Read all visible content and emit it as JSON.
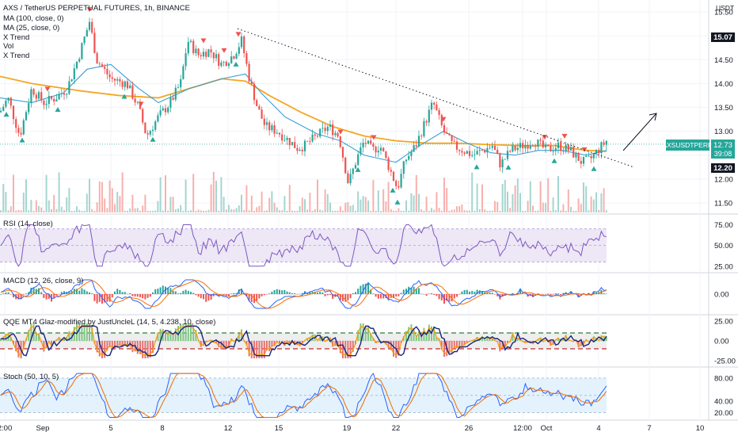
{
  "header": {
    "title": "AXS / TetherUS PERPETUAL FUTURES, 1h, BINANCE",
    "indicators": [
      "MA (100, close, 0)",
      "MA (25, close, 0)",
      "X Trend",
      "Vol",
      "X Trend"
    ]
  },
  "price_axis": {
    "currency": "USDT"
  },
  "badges": {
    "high": "15.07",
    "symbol": "AXSUSDTPERP",
    "last": "12.73",
    "countdown": "39:08",
    "low": "12.20"
  },
  "panes": {
    "rsi": {
      "title": "RSI (14, close)"
    },
    "macd": {
      "title": "MACD (12, 26, close, 9)"
    },
    "qqe": {
      "title": "QQE MT4 Glaz-modified by JustUncleL (14, 5, 4.238, 10, close)"
    },
    "stoch": {
      "title": "Stoch (50, 10, 5)"
    }
  },
  "colors": {
    "up": "#26a69a",
    "down": "#ef5350",
    "ma100": "#f5a623",
    "ma25": "#3aa0d8",
    "rsi": "#7e57c2",
    "rsi_band": "#ede7f6",
    "macd": "#2962ff",
    "signal": "#ff6d00",
    "qqe_line": "#1a237e",
    "stoch_k": "#2962ff",
    "stoch_d": "#ef6c00",
    "stoch_band": "#e3f2fd",
    "badge_dark": "#131722",
    "badge_symbol": "#26a69a"
  },
  "chart_data": [
    {
      "type": "candlestick",
      "title": "AXS / TetherUS PERPETUAL FUTURES, 1h, BINANCE",
      "price_unit": "USDT",
      "x_tick_labels": [
        "2:00",
        "Sep",
        "5",
        "8",
        "12",
        "15",
        "19",
        "22",
        "26",
        "12:00",
        "Oct",
        "4",
        "7",
        "10"
      ],
      "y_tick_labels": [
        "11.50",
        "12.00",
        "12.50",
        "13.00",
        "13.50",
        "14.00",
        "14.50",
        "15.00",
        "15.50"
      ],
      "ylim": [
        11.3,
        15.7
      ],
      "high_marker": 15.07,
      "low_marker": 12.2,
      "last_price": 12.73,
      "price_path": [
        [
          0,
          13.4
        ],
        [
          10,
          13.7
        ],
        [
          25,
          12.9
        ],
        [
          40,
          13.9
        ],
        [
          55,
          13.6
        ],
        [
          70,
          13.7
        ],
        [
          85,
          13.9
        ],
        [
          100,
          14.6
        ],
        [
          113,
          15.3
        ],
        [
          122,
          14.5
        ],
        [
          140,
          14.1
        ],
        [
          160,
          14.0
        ],
        [
          175,
          13.5
        ],
        [
          185,
          12.9
        ],
        [
          200,
          13.3
        ],
        [
          215,
          13.6
        ],
        [
          228,
          14.0
        ],
        [
          237,
          14.9
        ],
        [
          250,
          14.6
        ],
        [
          265,
          14.7
        ],
        [
          280,
          14.4
        ],
        [
          295,
          14.6
        ],
        [
          305,
          14.9
        ],
        [
          315,
          14.1
        ],
        [
          325,
          13.5
        ],
        [
          335,
          13.1
        ],
        [
          350,
          13.0
        ],
        [
          365,
          12.8
        ],
        [
          375,
          12.65
        ],
        [
          385,
          12.7
        ],
        [
          400,
          12.9
        ],
        [
          415,
          13.1
        ],
        [
          428,
          12.9
        ],
        [
          440,
          11.9
        ],
        [
          450,
          12.4
        ],
        [
          460,
          12.8
        ],
        [
          470,
          12.6
        ],
        [
          480,
          12.7
        ],
        [
          490,
          12.3
        ],
        [
          502,
          11.8
        ],
        [
          512,
          12.4
        ],
        [
          525,
          12.7
        ],
        [
          537,
          13.2
        ],
        [
          547,
          13.6
        ],
        [
          560,
          13.0
        ],
        [
          572,
          12.7
        ],
        [
          585,
          12.6
        ],
        [
          597,
          12.5
        ],
        [
          610,
          12.6
        ],
        [
          622,
          12.7
        ],
        [
          632,
          12.3
        ],
        [
          645,
          12.6
        ],
        [
          660,
          12.7
        ],
        [
          675,
          12.8
        ],
        [
          690,
          12.6
        ],
        [
          705,
          12.7
        ],
        [
          720,
          12.6
        ],
        [
          735,
          12.35
        ],
        [
          745,
          12.4
        ],
        [
          755,
          12.6
        ],
        [
          766,
          12.8
        ]
      ],
      "ma100": [
        [
          0,
          14.15
        ],
        [
          40,
          14.0
        ],
        [
          100,
          13.85
        ],
        [
          150,
          13.75
        ],
        [
          200,
          13.7
        ],
        [
          240,
          13.9
        ],
        [
          280,
          14.1
        ],
        [
          310,
          14.05
        ],
        [
          340,
          13.75
        ],
        [
          380,
          13.4
        ],
        [
          420,
          13.1
        ],
        [
          460,
          12.9
        ],
        [
          500,
          12.8
        ],
        [
          540,
          12.75
        ],
        [
          580,
          12.75
        ],
        [
          620,
          12.72
        ],
        [
          660,
          12.7
        ],
        [
          700,
          12.7
        ],
        [
          740,
          12.6
        ],
        [
          766,
          12.58
        ]
      ],
      "ma25": [
        [
          0,
          13.7
        ],
        [
          40,
          13.6
        ],
        [
          80,
          13.8
        ],
        [
          110,
          14.3
        ],
        [
          140,
          14.4
        ],
        [
          175,
          13.9
        ],
        [
          200,
          13.6
        ],
        [
          240,
          13.9
        ],
        [
          280,
          14.1
        ],
        [
          310,
          14.2
        ],
        [
          330,
          13.8
        ],
        [
          360,
          13.3
        ],
        [
          400,
          12.95
        ],
        [
          430,
          12.8
        ],
        [
          460,
          12.5
        ],
        [
          500,
          12.35
        ],
        [
          530,
          12.7
        ],
        [
          560,
          13.0
        ],
        [
          590,
          12.75
        ],
        [
          620,
          12.55
        ],
        [
          650,
          12.5
        ],
        [
          680,
          12.6
        ],
        [
          710,
          12.6
        ],
        [
          740,
          12.5
        ],
        [
          766,
          12.6
        ]
      ],
      "trendline": {
        "from": [
          300,
          15.15
        ],
        "to": [
          800,
          12.25
        ]
      },
      "sell_markers_x": [
        60,
        113,
        178,
        257,
        283,
        301,
        430,
        472,
        560,
        688,
        713,
        738
      ],
      "buy_markers_x": [
        8,
        28,
        73,
        157,
        193,
        298,
        452,
        496,
        502,
        602,
        642,
        700,
        750
      ]
    },
    {
      "type": "line",
      "title": "RSI (14, close)",
      "y_tick_labels": [
        "75.00",
        "50.00",
        "25.00"
      ],
      "ylim": [
        20,
        85
      ],
      "band": [
        30,
        70
      ]
    },
    {
      "type": "line",
      "title": "MACD (12, 26, close, 9)",
      "y_tick_labels": [
        "0.00"
      ],
      "ylim": [
        -0.4,
        0.4
      ]
    },
    {
      "type": "line",
      "title": "QQE MT4 Glaz-modified by JustUncleL (14, 5, 4.238, 10, close)",
      "y_tick_labels": [
        "25.00",
        "0.00",
        "-25.00"
      ],
      "ylim": [
        -30,
        30
      ]
    },
    {
      "type": "line",
      "title": "Stoch (50, 10, 5)",
      "y_tick_labels": [
        "80.00",
        "40.00",
        "20.00"
      ],
      "ylim": [
        10,
        95
      ],
      "band": [
        20,
        80
      ]
    }
  ]
}
